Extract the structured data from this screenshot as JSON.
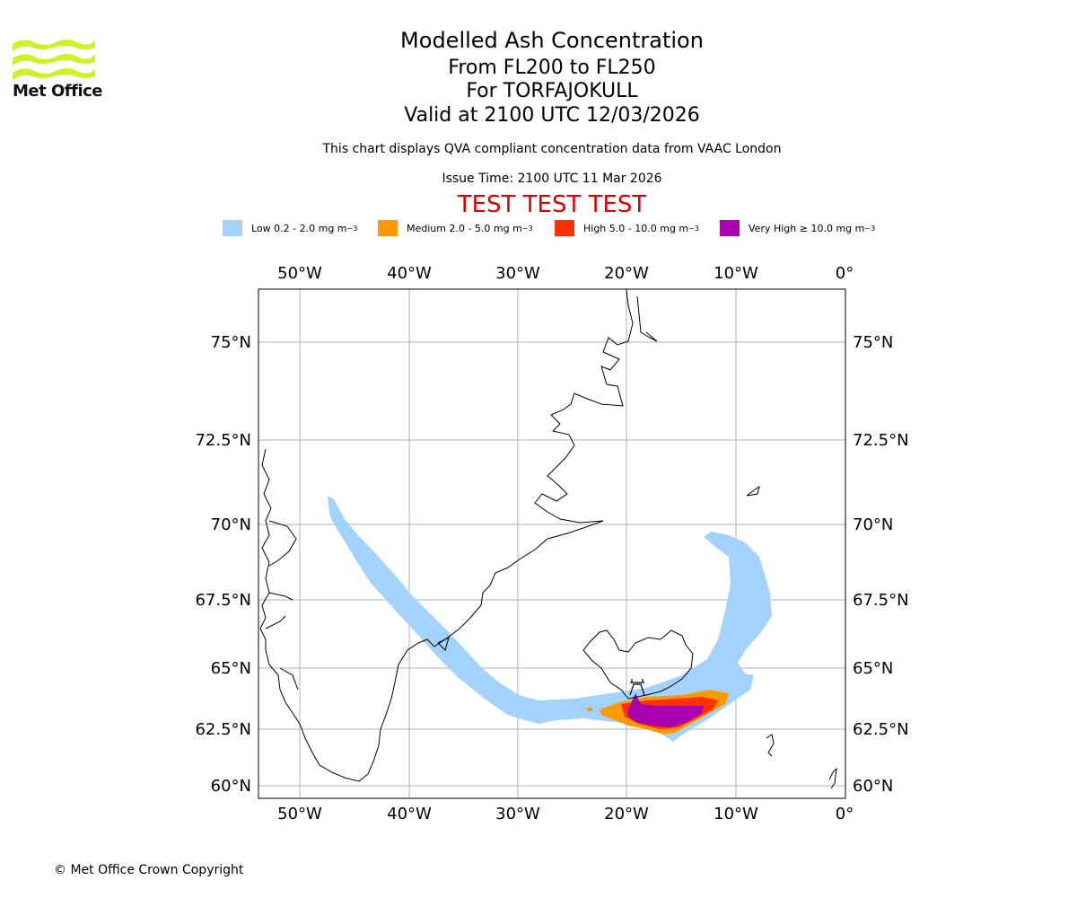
{
  "header": {
    "logo_text": "Met Office",
    "title": "Modelled Ash Concentration",
    "levels": "From FL200 to FL250",
    "volcano": "For TORFAJOKULL",
    "valid": "Valid at 2100 UTC 12/03/2026",
    "note": "This chart displays QVA compliant concentration data from VAAC London",
    "issue": "Issue Time: 2100 UTC 11 Mar 2026",
    "test_banner": "TEST TEST TEST"
  },
  "legend": [
    {
      "label": "Low 0.2 - 2.0 mg m",
      "unit_exp": "−3",
      "color": "#a3d3fc"
    },
    {
      "label": "Medium 2.0 - 5.0 mg m",
      "unit_exp": "−3",
      "color": "#ff9900"
    },
    {
      "label": "High 5.0 - 10.0 mg m",
      "unit_exp": "−3",
      "color": "#ff3000"
    },
    {
      "label": "Very High  ≥  10.0 mg m",
      "unit_exp": "−3",
      "color": "#aa00b0"
    }
  ],
  "map": {
    "lon_labels": [
      "50°W",
      "40°W",
      "30°W",
      "20°W",
      "10°W",
      "0°"
    ],
    "lat_labels": [
      "75°N",
      "72.5°N",
      "70°N",
      "67.5°N",
      "65°N",
      "62.5°N",
      "60°N"
    ],
    "volcano_marker": "volcano-icon"
  },
  "footer": {
    "copyright": "© Met Office Crown Copyright"
  }
}
